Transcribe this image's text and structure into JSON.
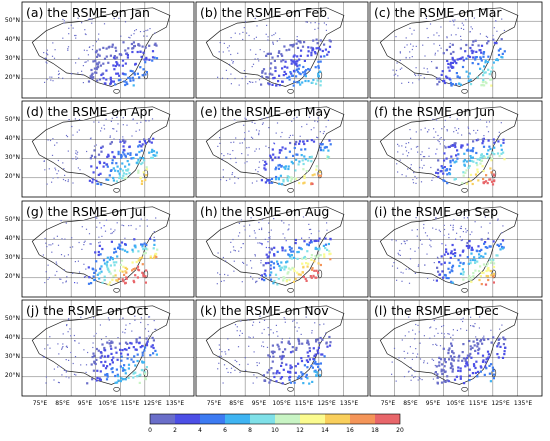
{
  "panels": [
    {
      "title": "(a) the RSME on Jan",
      "level": 0.18
    },
    {
      "title": "(b) the RSME on Feb",
      "level": 0.22
    },
    {
      "title": "(c) the RSME on Mar",
      "level": 0.32
    },
    {
      "title": "(d) the RSME on Apr",
      "level": 0.4
    },
    {
      "title": "(e) the RSME on May",
      "level": 0.48
    },
    {
      "title": "(f) the RSME on Jun",
      "level": 0.55
    },
    {
      "title": "(g) the RSME on Jul",
      "level": 0.72
    },
    {
      "title": "(h) the RSME on Aug",
      "level": 0.66
    },
    {
      "title": "(i) the RSME on Sep",
      "level": 0.48
    },
    {
      "title": "(j) the RSME on Oct",
      "level": 0.3
    },
    {
      "title": "(k) the RSME on Nov",
      "level": 0.2
    },
    {
      "title": "(l) the RSME on Dec",
      "level": 0.16
    }
  ],
  "lat_labels": [
    "50°N",
    "40°N",
    "30°N",
    "20°N"
  ],
  "lon_labels": [
    "75°E",
    "85°E",
    "95°E",
    "105°E",
    "115°E",
    "125°E",
    "135°E"
  ],
  "colorbar": {
    "ticks": [
      "0",
      "2",
      "4",
      "6",
      "8",
      "10",
      "12",
      "14",
      "16",
      "18",
      "20"
    ],
    "colors": [
      "#6a6ec9",
      "#4c4fe6",
      "#3d7bf2",
      "#3fb4f2",
      "#7fe0e8",
      "#c8f4c4",
      "#fbfb8f",
      "#f9cf5c",
      "#f49559",
      "#e8666a"
    ]
  }
}
